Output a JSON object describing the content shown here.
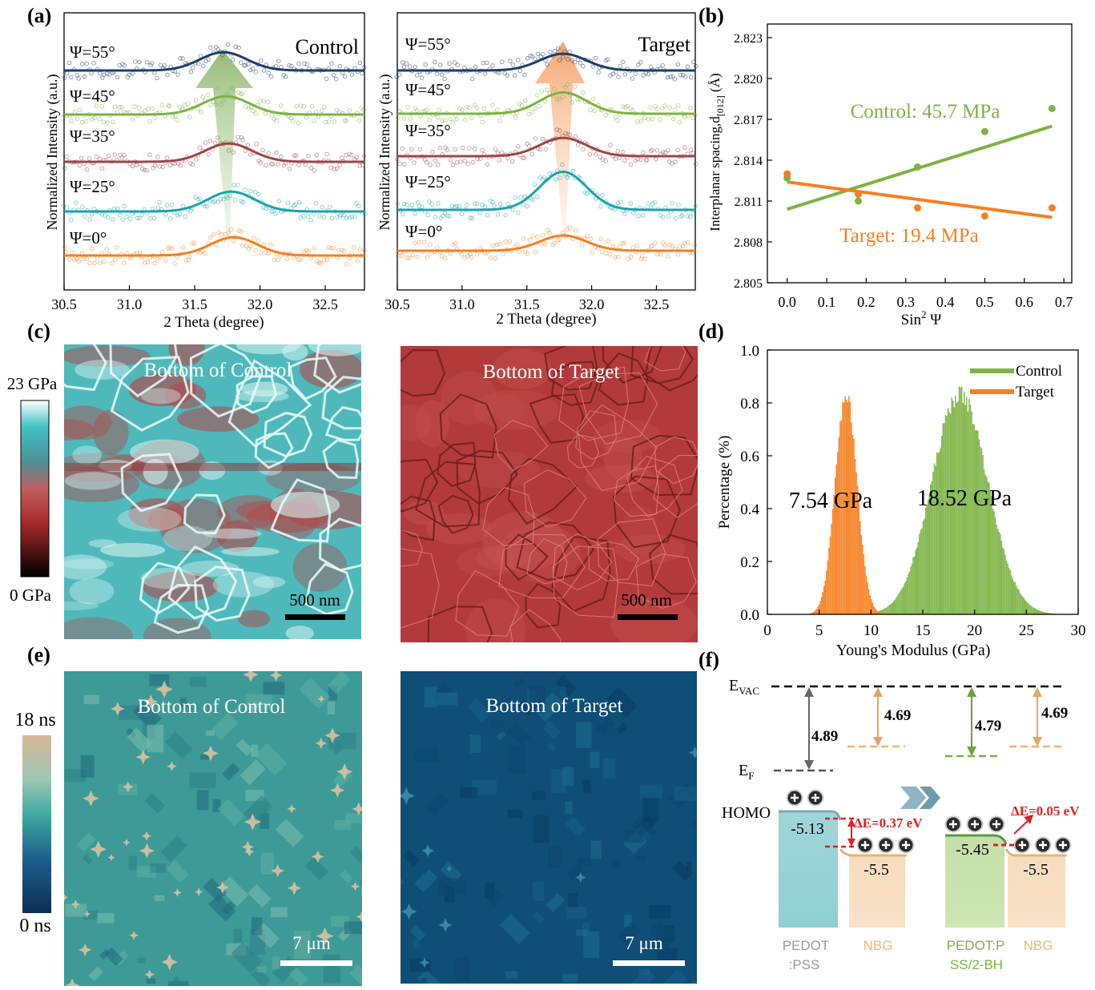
{
  "figure": {
    "panel_labels": [
      "(a)",
      "(b)",
      "(c)",
      "(d)",
      "(e)",
      "(f)"
    ]
  },
  "colors": {
    "psi0": "#f57f20",
    "psi25": "#1aa3ad",
    "psi35": "#9b4646",
    "psi45": "#7cb342",
    "psi55": "#1f3d6b",
    "control_green": "#7cb342",
    "target_orange": "#f57f20",
    "afm_cyan": "#5ecfcf",
    "afm_red": "#b03a3a",
    "trpl_teal": "#4fa59c",
    "trpl_navy": "#0d4f78",
    "trpl_tan": "#e3c3a3"
  },
  "chart_data": [
    {
      "panel": "(a) left",
      "type": "line",
      "title": "Control",
      "xlabel": "2 Theta (degree)",
      "ylabel": "Normalized Intensity (a.u.)",
      "xlim": [
        30.5,
        32.8
      ],
      "xticks": [
        "30.5",
        "31.0",
        "31.5",
        "32.0",
        "32.5"
      ],
      "series": [
        {
          "name": "Ψ=0°",
          "peak_center": 31.8,
          "peak_height": 0.12
        },
        {
          "name": "Ψ=25°",
          "peak_center": 31.78,
          "peak_height": 0.13
        },
        {
          "name": "Ψ=35°",
          "peak_center": 31.76,
          "peak_height": 0.12
        },
        {
          "name": "Ψ=45°",
          "peak_center": 31.74,
          "peak_height": 0.12
        },
        {
          "name": "Ψ=55°",
          "peak_center": 31.72,
          "peak_height": 0.12
        }
      ]
    },
    {
      "panel": "(a) right",
      "type": "line",
      "title": "Target",
      "xlabel": "2 Theta (degree)",
      "ylabel": "Normalized Intensity (a.u.)",
      "xlim": [
        30.5,
        32.8
      ],
      "xticks": [
        "30.5",
        "31.0",
        "31.5",
        "32.0",
        "32.5"
      ],
      "series": [
        {
          "name": "Ψ=0°",
          "peak_center": 31.78,
          "peak_height": 0.1
        },
        {
          "name": "Ψ=25°",
          "peak_center": 31.78,
          "peak_height": 0.25
        },
        {
          "name": "Ψ=35°",
          "peak_center": 31.78,
          "peak_height": 0.12
        },
        {
          "name": "Ψ=45°",
          "peak_center": 31.78,
          "peak_height": 0.14
        },
        {
          "name": "Ψ=55°",
          "peak_center": 31.78,
          "peak_height": 0.11
        }
      ]
    },
    {
      "panel": "(b)",
      "type": "scatter",
      "xlabel": "Sin",
      "xlabel_sup": "2",
      "xlabel_tail": " Ψ",
      "ylabel": "Interplanar spacing,d",
      "ylabel_sub": "[012]",
      "ylabel_tail": " (Å)",
      "xlim": [
        -0.05,
        0.72
      ],
      "ylim": [
        2.805,
        2.824
      ],
      "xticks": [
        "0.0",
        "0.1",
        "0.2",
        "0.3",
        "0.4",
        "0.5",
        "0.6",
        "0.7"
      ],
      "yticks": [
        "2.805",
        "2.808",
        "2.811",
        "2.814",
        "2.817",
        "2.820",
        "2.823"
      ],
      "series": [
        {
          "name": "Control: 45.7 MPa",
          "points": [
            [
              0.0,
              2.8127
            ],
            [
              0.18,
              2.811
            ],
            [
              0.33,
              2.8135
            ],
            [
              0.5,
              2.8161
            ],
            [
              0.67,
              2.8178
            ]
          ],
          "fit": [
            [
              0.0,
              2.8104
            ],
            [
              0.67,
              2.8165
            ]
          ]
        },
        {
          "name": "Target: 19.4 MPa",
          "points": [
            [
              0.0,
              2.813
            ],
            [
              0.18,
              2.8115
            ],
            [
              0.33,
              2.8105
            ],
            [
              0.5,
              2.8099
            ],
            [
              0.67,
              2.8105
            ]
          ],
          "fit": [
            [
              0.0,
              2.8124
            ],
            [
              0.67,
              2.8098
            ]
          ]
        }
      ]
    },
    {
      "panel": "(d)",
      "type": "bar",
      "xlabel": "Young's Modulus (GPa)",
      "ylabel": "Percentage (%)",
      "xlim": [
        0,
        30
      ],
      "ylim": [
        0,
        1.0
      ],
      "xticks": [
        "0",
        "5",
        "10",
        "15",
        "20",
        "25",
        "30"
      ],
      "yticks": [
        "0.0",
        "0.2",
        "0.4",
        "0.6",
        "0.8",
        "1.0"
      ],
      "series": [
        {
          "name": "Control",
          "peak_label": "18.52 GPa",
          "center": 18.52,
          "sigma": 2.7,
          "peak": 0.85
        },
        {
          "name": "Target",
          "peak_label": "7.54 GPa",
          "center": 7.54,
          "sigma": 1.05,
          "peak": 0.85
        }
      ]
    }
  ],
  "panel_c": {
    "left_title": "Bottom of Control",
    "right_title": "Bottom of Target",
    "scale_label": "500 nm",
    "colorbar_max": "23 GPa",
    "colorbar_min": "0 GPa"
  },
  "panel_e": {
    "left_title": "Bottom of Control",
    "right_title": "Bottom of Target",
    "scale_label": "7 μm",
    "colorbar_max": "18 ns",
    "colorbar_min": "0 ns"
  },
  "panel_f": {
    "evac": "E",
    "evac_sub": "VAC",
    "ef": "E",
    "ef_sub": "F",
    "homo": "HOMO",
    "gap_values": [
      "4.89",
      "4.69",
      "4.79",
      "4.69"
    ],
    "homo_pedot": "-5.13",
    "homo_nbg1": "-5.5",
    "homo_pedot_bh": "-5.45",
    "homo_nbg2": "-5.5",
    "delta1": "ΔE=0.37 eV",
    "delta2": "ΔE=0.05 eV",
    "label_pedot_1": "PEDOT",
    "label_pedot_2": ":PSS",
    "label_nbg": "NBG",
    "label_pedot_bh_1": "PEDOT:P",
    "label_pedot_bh_2": "SS/2-BH",
    "label_nbg2": "NBG"
  }
}
